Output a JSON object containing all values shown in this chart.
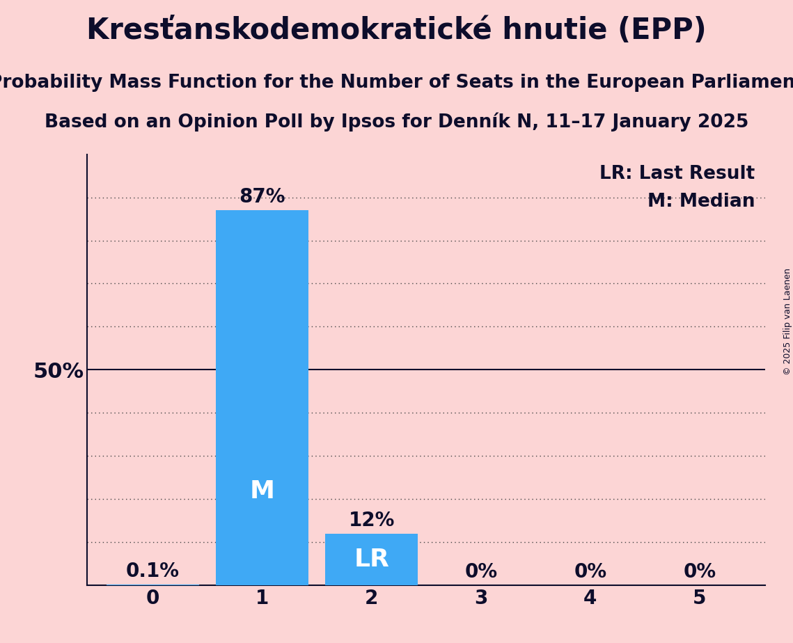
{
  "title": "Kresťanskodemokratické hnutie (EPP)",
  "subtitle": "Probability Mass Function for the Number of Seats in the European Parliament",
  "subsubtitle": "Based on an Opinion Poll by Ipsos for Denník N, 11–17 January 2025",
  "copyright": "© 2025 Filip van Laenen",
  "x_values": [
    0,
    1,
    2,
    3,
    4,
    5
  ],
  "y_values": [
    0.001,
    0.87,
    0.12,
    0.0,
    0.0,
    0.0
  ],
  "bar_color": "#3fa9f5",
  "background_color": "#fcd5d5",
  "label_50pct": "50%",
  "bar_labels": [
    "0.1%",
    "87%",
    "12%",
    "0%",
    "0%",
    "0%"
  ],
  "bar_annotations": [
    "",
    "M",
    "LR",
    "",
    "",
    ""
  ],
  "legend_lr": "LR: Last Result",
  "legend_m": "M: Median",
  "ylim": [
    0,
    1.0
  ],
  "fifty_pct": 0.5,
  "title_fontsize": 30,
  "subtitle_fontsize": 19,
  "subsubtitle_fontsize": 19,
  "label_fontsize": 20,
  "tick_fontsize": 20,
  "annotation_fontsize": 26,
  "legend_fontsize": 19,
  "axis_label_fontsize": 22,
  "copyright_fontsize": 9
}
